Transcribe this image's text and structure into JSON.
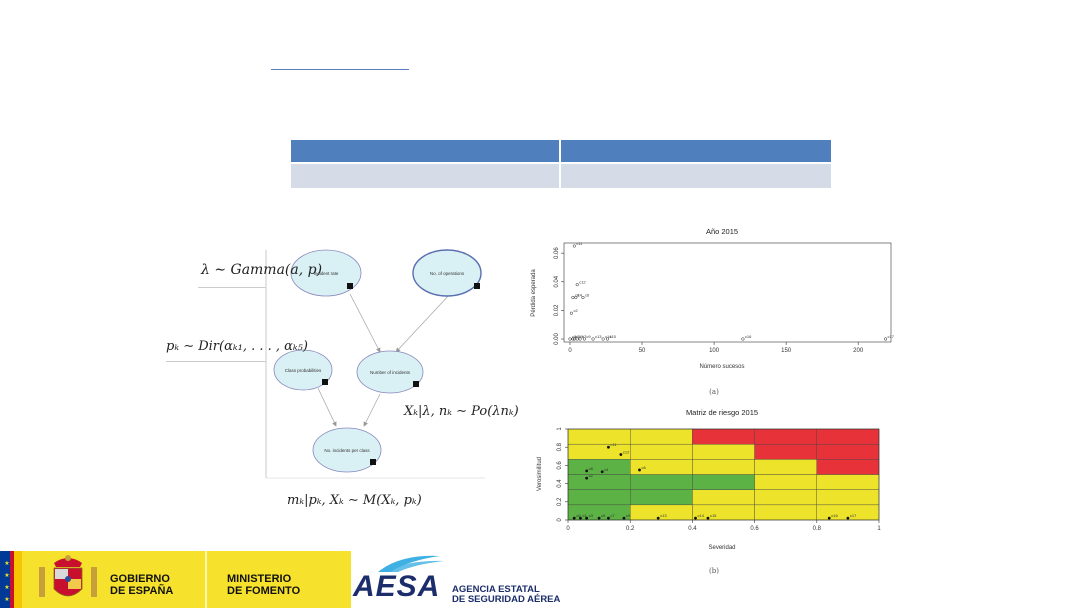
{
  "bayes_net": {
    "nodes": {
      "incident_rate": "Incident rate",
      "no_operations": "No. of operations",
      "class_probabilities": "Class probabilities",
      "number_incidents": "Number of incidents",
      "incidents_per_class": "No. incidents per class"
    },
    "formulas": {
      "lambda": "λ ∼ Gamma(a, p)",
      "pk": "pₖ ∼ Dir(αₖ₁, . . . , αₖ₅)",
      "xk": "Xₖ|λ, nₖ ∼ Po(λnₖ)",
      "mk": "mₖ|pₖ, Xₖ ∼ M(Xₖ, pₖ)"
    }
  },
  "chart_data": [
    {
      "type": "scatter",
      "title": "Año 2015",
      "xlabel": "Número sucesos",
      "ylabel": "Pérdida esperada",
      "xlim": [
        0,
        220
      ],
      "ylim": [
        0,
        0.065
      ],
      "xticks": [
        "0",
        "50",
        "100",
        "150",
        "200"
      ],
      "yticks": [
        "0.00",
        "0.02",
        "0.04",
        "0.06"
      ],
      "caption": "(a)",
      "points": [
        {
          "x": 3,
          "y": 0.065,
          "label": "c11"
        },
        {
          "x": 5,
          "y": 0.038,
          "label": "c12"
        },
        {
          "x": 2,
          "y": 0.029,
          "label": "c8"
        },
        {
          "x": 4,
          "y": 0.029,
          "label": "c4"
        },
        {
          "x": 9,
          "y": 0.029,
          "label": "c6"
        },
        {
          "x": 1,
          "y": 0.018,
          "label": "c2"
        },
        {
          "x": 0,
          "y": 0,
          "label": "c0"
        },
        {
          "x": 2,
          "y": 0,
          "label": "c1"
        },
        {
          "x": 3,
          "y": 0,
          "label": "c3"
        },
        {
          "x": 5,
          "y": 0,
          "label": "c5"
        },
        {
          "x": 7,
          "y": 0,
          "label": "c7"
        },
        {
          "x": 10,
          "y": 0,
          "label": "c9"
        },
        {
          "x": 16,
          "y": 0,
          "label": "c13"
        },
        {
          "x": 23,
          "y": 0,
          "label": "c14"
        },
        {
          "x": 26,
          "y": 0,
          "label": "c15"
        },
        {
          "x": 120,
          "y": 0,
          "label": "c16"
        },
        {
          "x": 219,
          "y": 0,
          "label": "c17"
        }
      ]
    },
    {
      "type": "scatter",
      "title": "Matriz de riesgo 2015",
      "xlabel": "Severidad",
      "ylabel": "Verosimilitud",
      "xlim": [
        0,
        1
      ],
      "ylim": [
        0,
        1
      ],
      "xticks": [
        "0",
        "0.2",
        "0.4",
        "0.6",
        "0.8",
        "1"
      ],
      "yticks": [
        "0",
        "0.2",
        "0.4",
        "0.6",
        "0.8",
        "1"
      ],
      "caption": "(b)",
      "zone_colors": {
        "green": "#5cb244",
        "yellow": "#ece32a",
        "red": "#e8323a"
      },
      "grid_zones": [
        [
          "green",
          "yellow",
          "yellow",
          "yellow",
          "yellow"
        ],
        [
          "green",
          "green",
          "yellow",
          "yellow",
          "yellow"
        ],
        [
          "green",
          "green",
          "green",
          "yellow",
          "yellow"
        ],
        [
          "green",
          "yellow",
          "yellow",
          "yellow",
          "red"
        ],
        [
          "yellow",
          "yellow",
          "yellow",
          "red",
          "red"
        ],
        [
          "yellow",
          "yellow",
          "red",
          "red",
          "red"
        ]
      ],
      "points": [
        {
          "x": 0.13,
          "y": 0.8,
          "label": "c11"
        },
        {
          "x": 0.17,
          "y": 0.72,
          "label": "c12"
        },
        {
          "x": 0.06,
          "y": 0.54,
          "label": "c8"
        },
        {
          "x": 0.11,
          "y": 0.53,
          "label": "c4"
        },
        {
          "x": 0.23,
          "y": 0.55,
          "label": "c6"
        },
        {
          "x": 0.06,
          "y": 0.46,
          "label": "c2"
        },
        {
          "x": 0.02,
          "y": 0.02,
          "label": "c0"
        },
        {
          "x": 0.04,
          "y": 0.02,
          "label": "c1"
        },
        {
          "x": 0.06,
          "y": 0.02,
          "label": "c3"
        },
        {
          "x": 0.1,
          "y": 0.02,
          "label": "c5"
        },
        {
          "x": 0.13,
          "y": 0.02,
          "label": "c7"
        },
        {
          "x": 0.18,
          "y": 0.02,
          "label": "c9"
        },
        {
          "x": 0.29,
          "y": 0.02,
          "label": "c13"
        },
        {
          "x": 0.41,
          "y": 0.02,
          "label": "c14"
        },
        {
          "x": 0.45,
          "y": 0.02,
          "label": "c15"
        },
        {
          "x": 0.84,
          "y": 0.02,
          "label": "c16"
        },
        {
          "x": 0.9,
          "y": 0.02,
          "label": "c17"
        }
      ]
    }
  ],
  "footer": {
    "gov_line1": "GOBIERNO",
    "gov_line2": "DE ESPAÑA",
    "min_line1": "MINISTERIO",
    "min_line2": "DE FOMENTO",
    "aesa": "AESA",
    "agency_line1": "AGENCIA ESTATAL",
    "agency_line2": "DE SEGURIDAD AÉREA"
  }
}
